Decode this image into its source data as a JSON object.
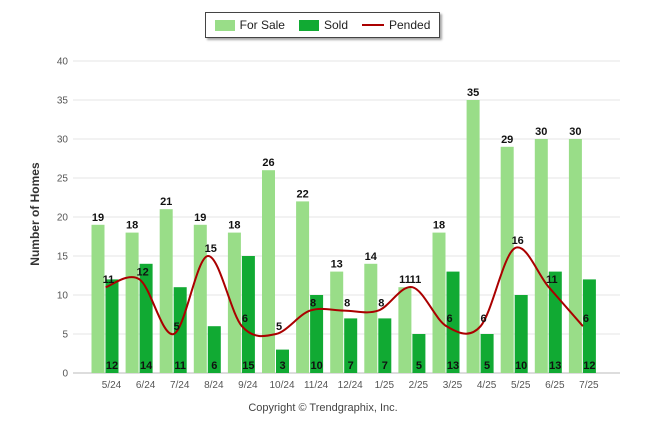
{
  "chart_data": {
    "type": "bar",
    "categories": [
      "5/24",
      "6/24",
      "7/24",
      "8/24",
      "9/24",
      "10/24",
      "11/24",
      "12/24",
      "1/25",
      "2/25",
      "3/25",
      "4/25",
      "5/25",
      "6/25",
      "7/25"
    ],
    "series": [
      {
        "name": "For Sale",
        "type": "bar",
        "color": "#99dd88",
        "values": [
          19,
          18,
          21,
          19,
          18,
          26,
          22,
          13,
          14,
          11,
          18,
          35,
          29,
          30,
          30
        ]
      },
      {
        "name": "Sold",
        "type": "bar",
        "color": "#11aa33",
        "values": [
          12,
          14,
          11,
          6,
          15,
          3,
          10,
          7,
          7,
          5,
          13,
          5,
          10,
          13,
          12
        ]
      },
      {
        "name": "Pended",
        "type": "line",
        "color": "#aa0000",
        "values": [
          11,
          12,
          5,
          15,
          6,
          5,
          8,
          8,
          8,
          11,
          6,
          6,
          16,
          11,
          6
        ]
      }
    ],
    "ylabel": "Number of Homes",
    "xlabel": "",
    "ylim": [
      0,
      40
    ],
    "yticks": [
      0,
      5,
      10,
      15,
      20,
      25,
      30,
      35,
      40
    ],
    "grid": true,
    "legend_position": "top-center"
  },
  "legend": [
    {
      "label": "For Sale",
      "color": "#99dd88",
      "kind": "bar"
    },
    {
      "label": "Sold",
      "color": "#11aa33",
      "kind": "bar"
    },
    {
      "label": "Pended",
      "color": "#aa0000",
      "kind": "line"
    }
  ],
  "copyright": "Copyright © Trendgraphix, Inc."
}
